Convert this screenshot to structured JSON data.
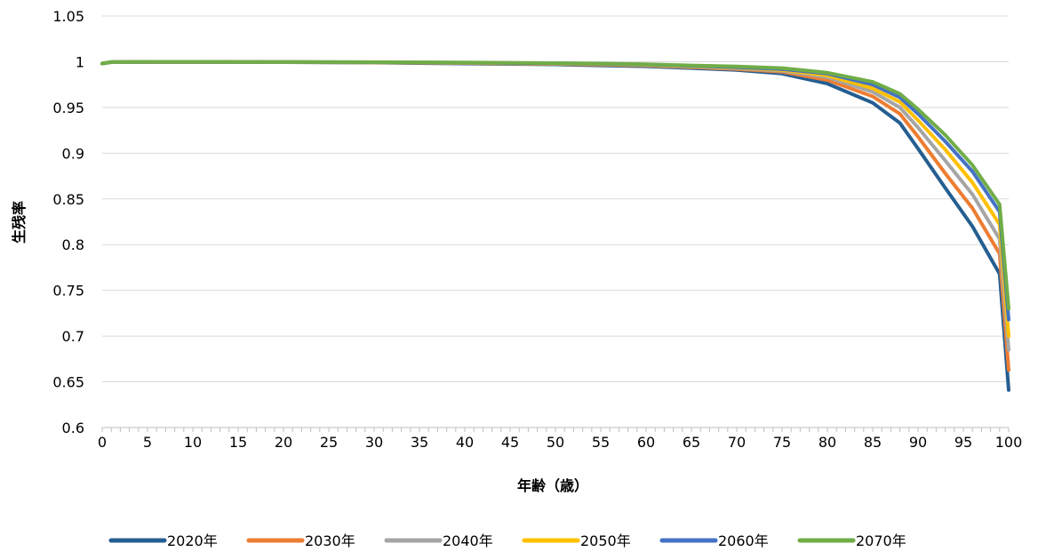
{
  "chart_data": {
    "type": "line",
    "title": "",
    "xlabel": "年齢（歳）",
    "ylabel": "生残率",
    "xlim": [
      0,
      100
    ],
    "ylim": [
      0.6,
      1.05
    ],
    "x_ticks": [
      "0",
      "5",
      "10",
      "15",
      "20",
      "25",
      "30",
      "35",
      "40",
      "45",
      "50",
      "55",
      "60",
      "65",
      "70",
      "75",
      "80",
      "85",
      "90",
      "95",
      "100"
    ],
    "y_ticks": [
      "0.6",
      "0.65",
      "0.7",
      "0.75",
      "0.8",
      "0.85",
      "0.9",
      "0.95",
      "1",
      "1.05"
    ],
    "grid": true,
    "legend_position": "bottom",
    "x": [
      0,
      1,
      5,
      10,
      20,
      30,
      40,
      50,
      55,
      60,
      65,
      70,
      75,
      80,
      85,
      88,
      90,
      93,
      96,
      99,
      100
    ],
    "series": [
      {
        "name": "2020年",
        "color": "#255E91",
        "values": [
          0.998,
          0.9995,
          0.9998,
          0.9998,
          0.9995,
          0.999,
          0.998,
          0.997,
          0.996,
          0.995,
          0.993,
          0.991,
          0.987,
          0.976,
          0.955,
          0.933,
          0.905,
          0.862,
          0.82,
          0.768,
          0.641
        ]
      },
      {
        "name": "2030年",
        "color": "#ED7D31",
        "values": [
          0.998,
          0.9996,
          0.9998,
          0.9998,
          0.9996,
          0.9992,
          0.9985,
          0.9975,
          0.9968,
          0.9958,
          0.994,
          0.992,
          0.989,
          0.98,
          0.962,
          0.943,
          0.918,
          0.878,
          0.84,
          0.79,
          0.663
        ]
      },
      {
        "name": "2040年",
        "color": "#A5A5A5",
        "values": [
          0.998,
          0.9996,
          0.9998,
          0.9998,
          0.9996,
          0.9993,
          0.9987,
          0.9978,
          0.9972,
          0.9962,
          0.9945,
          0.9928,
          0.99,
          0.983,
          0.967,
          0.95,
          0.928,
          0.892,
          0.855,
          0.806,
          0.685
        ]
      },
      {
        "name": "2050年",
        "color": "#FFC000",
        "values": [
          0.998,
          0.9997,
          0.9998,
          0.9998,
          0.9997,
          0.9994,
          0.9988,
          0.998,
          0.9975,
          0.9966,
          0.995,
          0.9935,
          0.991,
          0.985,
          0.971,
          0.956,
          0.936,
          0.904,
          0.868,
          0.822,
          0.7
        ]
      },
      {
        "name": "2060年",
        "color": "#4472C4",
        "values": [
          0.998,
          0.9997,
          0.9998,
          0.9998,
          0.9997,
          0.9995,
          0.999,
          0.9983,
          0.9978,
          0.997,
          0.9955,
          0.994,
          0.992,
          0.987,
          0.975,
          0.961,
          0.943,
          0.913,
          0.88,
          0.836,
          0.718
        ]
      },
      {
        "name": "2070年",
        "color": "#70AD47",
        "values": [
          0.998,
          0.9998,
          0.9999,
          0.9999,
          0.9998,
          0.9996,
          0.9992,
          0.9985,
          0.998,
          0.9973,
          0.996,
          0.9948,
          0.993,
          0.988,
          0.978,
          0.965,
          0.948,
          0.92,
          0.887,
          0.844,
          0.73
        ]
      }
    ]
  }
}
